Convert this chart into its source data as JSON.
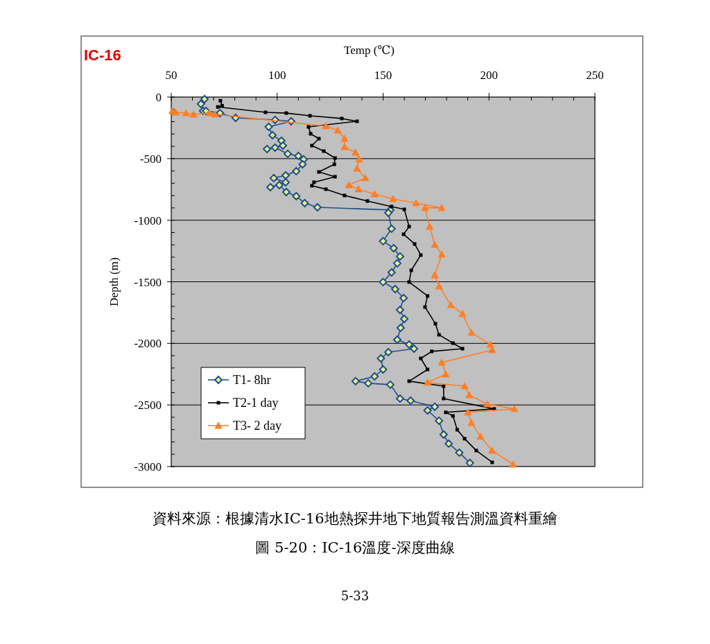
{
  "chart_data": {
    "type": "line",
    "title": "IC-16",
    "xlabel": "Temp (℃)",
    "ylabel": "Depth (m)",
    "xlim": [
      50,
      250
    ],
    "xticks": [
      50,
      100,
      150,
      200,
      250
    ],
    "ylim": [
      -3000,
      0
    ],
    "yticks": [
      0,
      -500,
      -1000,
      -1500,
      -2000,
      -2500,
      -3000
    ],
    "grid": "y",
    "legend": "bottom left",
    "line_style": "solid",
    "series": [
      {
        "name": "T1- 8hr",
        "color": "#1f4e8c",
        "marker": "diamond",
        "x": [
          65.7,
          64,
          65,
          66.4,
          73,
          80.4,
          99,
          106.6,
          96,
          97.8,
          102,
          102.7,
          95.2,
          99,
          105,
          110,
          112.5,
          112,
          109,
          104,
          98.4,
          104,
          96.8,
          101,
          104.3,
          109,
          113,
          119,
          153.4,
          152.5,
          154,
          150,
          155,
          158,
          156.7,
          154,
          150,
          155.7,
          159.7,
          158,
          160,
          158.3,
          156.7,
          162.3,
          164.6,
          152.5,
          149,
          150,
          146,
          137,
          143,
          153.4,
          158,
          163,
          174.4,
          171,
          176.4,
          178.6,
          181,
          186,
          191
        ],
        "values": [
          -17,
          -56,
          -113,
          -113,
          -130,
          -169,
          -186,
          -197,
          -242,
          -310,
          -355,
          -394,
          -422,
          -411,
          -461,
          -478,
          -506,
          -546,
          -602,
          -636,
          -658,
          -692,
          -732,
          -715,
          -771,
          -805,
          -861,
          -895,
          -917,
          -940,
          -1069,
          -1170,
          -1227,
          -1294,
          -1350,
          -1424,
          -1502,
          -1559,
          -1632,
          -1728,
          -1801,
          -1874,
          -1970,
          -2009,
          -2043,
          -2071,
          -2122,
          -2212,
          -2268,
          -2307,
          -2324,
          -2335,
          -2448,
          -2465,
          -2515,
          -2544,
          -2628,
          -2740,
          -2814,
          -2887,
          -2971
        ]
      },
      {
        "name": "T2-1 day",
        "color": "#000000",
        "marker": "square",
        "x": [
          73.2,
          74,
          72,
          94.5,
          104.3,
          115.5,
          130.5,
          137.7,
          114.8,
          115.8,
          119.7,
          116.4,
          122,
          127.3,
          127,
          119.7,
          127.3,
          117.4,
          116.4,
          123,
          131.8,
          142.6,
          154,
          160,
          162.3,
          159.7,
          164.9,
          167.8,
          163.3,
          162.3,
          171,
          169.8,
          174.7,
          176.4,
          183,
          187.5,
          173,
          167.8,
          171,
          162.3,
          178.6,
          178.6,
          202.5,
          179.6,
          183,
          185,
          188.5,
          194,
          201.5
        ],
        "values": [
          -30,
          -70,
          -80,
          -124,
          -130,
          -152,
          -174,
          -197,
          -242,
          -298,
          -338,
          -394,
          -439,
          -495,
          -546,
          -608,
          -647,
          -692,
          -720,
          -748,
          -799,
          -844,
          -889,
          -912,
          -1052,
          -1114,
          -1193,
          -1283,
          -1407,
          -1502,
          -1615,
          -1705,
          -1840,
          -1930,
          -1998,
          -2043,
          -2065,
          -2122,
          -2212,
          -2307,
          -2347,
          -2448,
          -2532,
          -2560,
          -2589,
          -2701,
          -2774,
          -2870,
          -2966
        ]
      },
      {
        "name": "T3- 2 day",
        "color": "#ff7f27",
        "marker": "triangle",
        "x": [
          50.5,
          52,
          57,
          60.5,
          68,
          70.6,
          123,
          128.6,
          131.8,
          131.8,
          137,
          138.7,
          137.7,
          141.6,
          133.8,
          138.4,
          146,
          154.7,
          165.5,
          177.7,
          169.8,
          172,
          174.4,
          177.7,
          174.4,
          176.4,
          182,
          187.5,
          191.7,
          200.6,
          201.5,
          177.7,
          179.6,
          171,
          188.5,
          190.7,
          199.3,
          212,
          190,
          191.7,
          196,
          201.5,
          211.4
        ],
        "values": [
          -113,
          -124,
          -130,
          -141,
          -130,
          -141,
          -236,
          -270,
          -338,
          -405,
          -450,
          -506,
          -580,
          -658,
          -715,
          -748,
          -788,
          -827,
          -861,
          -900,
          -900,
          -1052,
          -1199,
          -1277,
          -1446,
          -1536,
          -1688,
          -1761,
          -1913,
          -2009,
          -2054,
          -2155,
          -2251,
          -2318,
          -2347,
          -2420,
          -2493,
          -2532,
          -2560,
          -2645,
          -2757,
          -2870,
          -2983
        ]
      }
    ],
    "annotations": [
      "資料來源：根據清水IC-16地熱探井地下地質報告測溫資料重繪",
      "圖  5-20：IC-16溫度-深度曲線",
      "5-33"
    ]
  }
}
